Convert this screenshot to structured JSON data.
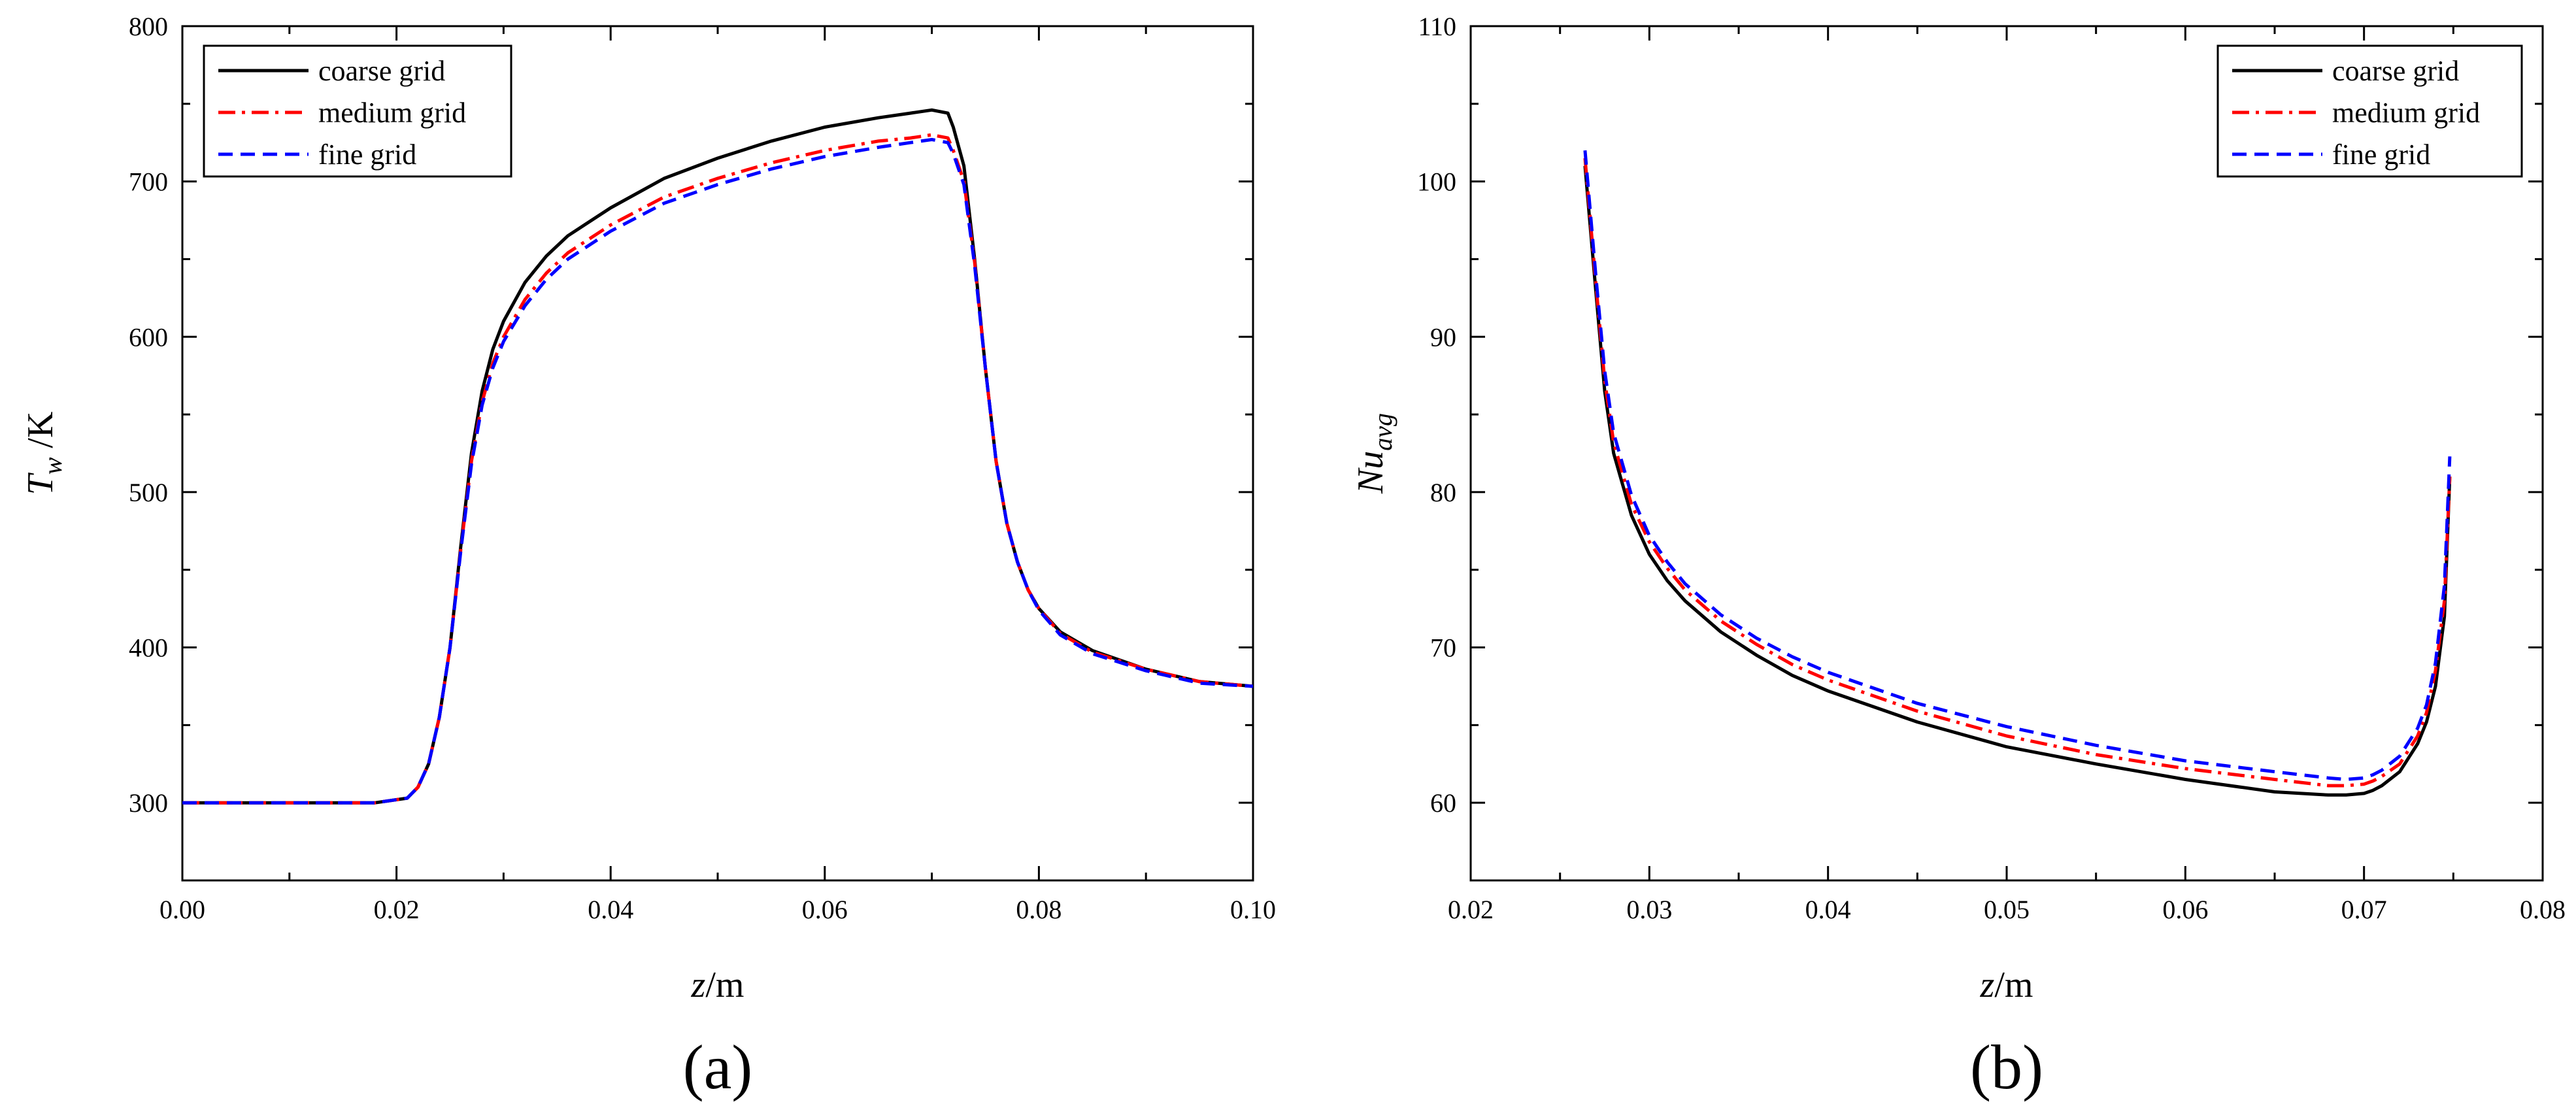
{
  "chart_data": [
    {
      "type": "line",
      "panel_label": "(a)",
      "xlabel": {
        "var": "z",
        "unit": "/m"
      },
      "ylabel": {
        "var": "T",
        "sub": "w",
        "unit": " /K"
      },
      "xlim": [
        0.0,
        0.1
      ],
      "ylim": [
        250,
        800
      ],
      "xticks": [
        0.0,
        0.02,
        0.04,
        0.06,
        0.08,
        0.1
      ],
      "xtick_labels": [
        "0.00",
        "0.02",
        "0.04",
        "0.06",
        "0.08",
        "0.10"
      ],
      "yticks": [
        300,
        400,
        500,
        600,
        700,
        800
      ],
      "ytick_labels": [
        "300",
        "400",
        "500",
        "600",
        "700",
        "800"
      ],
      "legend_position": "top-left",
      "series": [
        {
          "name": "coarse grid",
          "color": "#000000",
          "dash": "solid",
          "x": [
            0.0,
            0.018,
            0.021,
            0.022,
            0.023,
            0.024,
            0.025,
            0.026,
            0.027,
            0.028,
            0.029,
            0.03,
            0.032,
            0.034,
            0.036,
            0.04,
            0.045,
            0.05,
            0.055,
            0.06,
            0.065,
            0.068,
            0.07,
            0.0715,
            0.072,
            0.073,
            0.074,
            0.075,
            0.076,
            0.077,
            0.078,
            0.079,
            0.08,
            0.082,
            0.085,
            0.09,
            0.095,
            0.1
          ],
          "y": [
            300,
            300,
            303,
            310,
            325,
            355,
            400,
            465,
            525,
            565,
            592,
            610,
            635,
            652,
            665,
            683,
            702,
            715,
            726,
            735,
            741,
            744,
            746,
            744,
            735,
            710,
            650,
            580,
            520,
            480,
            455,
            437,
            425,
            410,
            398,
            386,
            378,
            375
          ]
        },
        {
          "name": "medium grid",
          "color": "#ff0000",
          "dash": "dashdot",
          "x": [
            0.0,
            0.018,
            0.021,
            0.022,
            0.023,
            0.024,
            0.025,
            0.026,
            0.027,
            0.028,
            0.029,
            0.03,
            0.032,
            0.034,
            0.036,
            0.04,
            0.045,
            0.05,
            0.055,
            0.06,
            0.065,
            0.068,
            0.07,
            0.0715,
            0.072,
            0.073,
            0.074,
            0.075,
            0.076,
            0.077,
            0.078,
            0.079,
            0.08,
            0.082,
            0.085,
            0.09,
            0.095,
            0.1
          ],
          "y": [
            300,
            300,
            303,
            310,
            325,
            355,
            400,
            463,
            520,
            558,
            583,
            600,
            624,
            641,
            654,
            672,
            690,
            702,
            712,
            720,
            726,
            728,
            730,
            728,
            720,
            700,
            648,
            580,
            520,
            480,
            455,
            437,
            425,
            409,
            397,
            386,
            378,
            375
          ]
        },
        {
          "name": "fine grid",
          "color": "#0000ff",
          "dash": "dashed",
          "x": [
            0.0,
            0.018,
            0.021,
            0.022,
            0.023,
            0.024,
            0.025,
            0.026,
            0.027,
            0.028,
            0.029,
            0.03,
            0.032,
            0.034,
            0.036,
            0.04,
            0.045,
            0.05,
            0.055,
            0.06,
            0.065,
            0.068,
            0.07,
            0.0715,
            0.072,
            0.073,
            0.074,
            0.075,
            0.076,
            0.077,
            0.078,
            0.079,
            0.08,
            0.082,
            0.085,
            0.09,
            0.095,
            0.1
          ],
          "y": [
            300,
            300,
            303,
            310,
            325,
            355,
            400,
            462,
            518,
            556,
            580,
            597,
            620,
            637,
            650,
            668,
            686,
            698,
            708,
            716,
            722,
            725,
            727,
            725,
            718,
            698,
            646,
            580,
            520,
            480,
            455,
            437,
            424,
            408,
            396,
            385,
            377,
            375
          ]
        }
      ]
    },
    {
      "type": "line",
      "panel_label": "(b)",
      "xlabel": {
        "var": "z",
        "unit": "/m"
      },
      "ylabel": {
        "var": "Nu",
        "sub": "avg",
        "unit": ""
      },
      "xlim": [
        0.02,
        0.08
      ],
      "ylim": [
        55,
        110
      ],
      "xticks": [
        0.02,
        0.03,
        0.04,
        0.05,
        0.06,
        0.07,
        0.08
      ],
      "xtick_labels": [
        "0.02",
        "0.03",
        "0.04",
        "0.05",
        "0.06",
        "0.07",
        "0.08"
      ],
      "yticks": [
        60,
        70,
        80,
        90,
        100,
        110
      ],
      "ytick_labels": [
        "60",
        "70",
        "80",
        "90",
        "100",
        "110"
      ],
      "legend_position": "top-right",
      "series": [
        {
          "name": "coarse grid",
          "color": "#000000",
          "dash": "solid",
          "x": [
            0.0264,
            0.027,
            0.0275,
            0.028,
            0.029,
            0.03,
            0.031,
            0.032,
            0.034,
            0.036,
            0.038,
            0.04,
            0.045,
            0.05,
            0.055,
            0.06,
            0.065,
            0.068,
            0.069,
            0.07,
            0.0705,
            0.071,
            0.072,
            0.073,
            0.0735,
            0.074,
            0.0745,
            0.0748
          ],
          "y": [
            101,
            93,
            86.5,
            82.5,
            78.5,
            76,
            74.3,
            73,
            71,
            69.5,
            68.2,
            67.2,
            65.2,
            63.6,
            62.5,
            61.5,
            60.7,
            60.5,
            60.5,
            60.6,
            60.8,
            61.1,
            62,
            63.8,
            65.2,
            67.5,
            72,
            81
          ]
        },
        {
          "name": "medium grid",
          "color": "#ff0000",
          "dash": "dashdot",
          "x": [
            0.0264,
            0.027,
            0.0275,
            0.028,
            0.029,
            0.03,
            0.031,
            0.032,
            0.034,
            0.036,
            0.038,
            0.04,
            0.045,
            0.05,
            0.055,
            0.06,
            0.065,
            0.068,
            0.069,
            0.07,
            0.0705,
            0.071,
            0.072,
            0.073,
            0.0735,
            0.074,
            0.0745,
            0.0748
          ],
          "y": [
            101.5,
            93.5,
            87.2,
            83.2,
            79.2,
            76.8,
            75.1,
            73.7,
            71.7,
            70.2,
            68.9,
            67.9,
            65.9,
            64.3,
            63.1,
            62.2,
            61.5,
            61.1,
            61.1,
            61.2,
            61.4,
            61.7,
            62.5,
            64.3,
            65.8,
            68.5,
            73,
            81
          ]
        },
        {
          "name": "fine grid",
          "color": "#0000ff",
          "dash": "dashed",
          "x": [
            0.0264,
            0.027,
            0.0275,
            0.028,
            0.029,
            0.03,
            0.031,
            0.032,
            0.034,
            0.036,
            0.038,
            0.04,
            0.045,
            0.05,
            0.055,
            0.06,
            0.065,
            0.068,
            0.069,
            0.07,
            0.0705,
            0.071,
            0.072,
            0.073,
            0.0735,
            0.074,
            0.0745,
            0.0748
          ],
          "y": [
            102,
            94,
            87.8,
            83.8,
            79.8,
            77.2,
            75.5,
            74.1,
            72.1,
            70.6,
            69.4,
            68.4,
            66.4,
            64.9,
            63.7,
            62.7,
            62,
            61.6,
            61.5,
            61.6,
            61.8,
            62.1,
            63,
            64.8,
            66.3,
            69,
            74,
            82.3
          ]
        }
      ]
    }
  ]
}
